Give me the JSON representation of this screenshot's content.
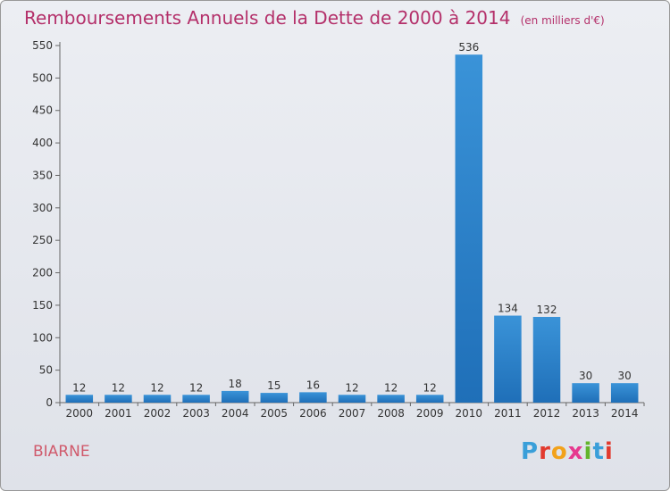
{
  "header": {
    "title": "Remboursements Annuels de la Dette de 2000 à 2014",
    "unit": "(en milliers d'€)"
  },
  "footer": {
    "commune": "BIARNE",
    "logo_letters": [
      "P",
      "r",
      "o",
      "x",
      "i",
      "t",
      "i"
    ],
    "logo_colors": [
      "#3a9fd9",
      "#e23a2e",
      "#f2a21b",
      "#e6398f",
      "#63b52c",
      "#3a9fd9",
      "#e23a2e"
    ]
  },
  "chart_data": {
    "type": "bar",
    "categories": [
      "2000",
      "2001",
      "2002",
      "2003",
      "2004",
      "2005",
      "2006",
      "2007",
      "2008",
      "2009",
      "2010",
      "2011",
      "2012",
      "2013",
      "2014"
    ],
    "values": [
      12,
      12,
      12,
      12,
      18,
      15,
      16,
      12,
      12,
      12,
      536,
      134,
      132,
      30,
      30
    ],
    "data_labels": [
      "12",
      "12",
      "12",
      "12",
      "18",
      "15",
      "16",
      "12",
      "12",
      "12",
      "536",
      "134",
      "132",
      "30",
      "30"
    ],
    "yticks": [
      0,
      50,
      100,
      150,
      200,
      250,
      300,
      350,
      400,
      450,
      500,
      550
    ],
    "ylim": [
      0,
      550
    ],
    "grid": false,
    "bar_color": "#3a93d8",
    "bar_color_dark": "#1f6fb8"
  }
}
